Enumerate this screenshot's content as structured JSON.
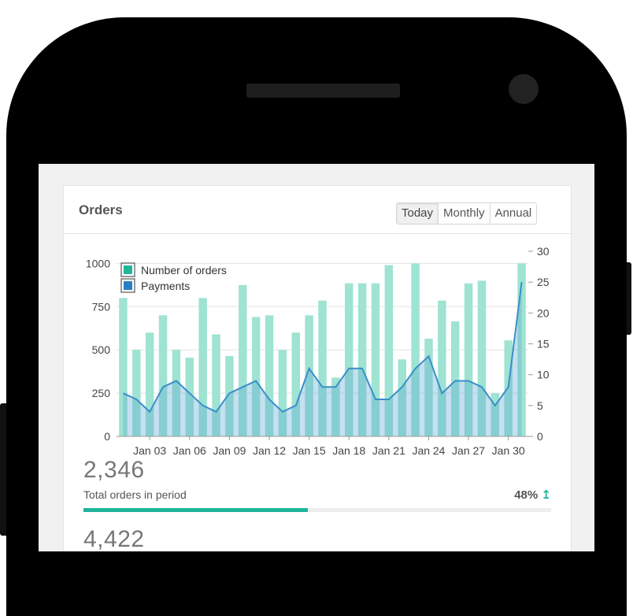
{
  "card": {
    "title": "Orders",
    "range_tabs": [
      {
        "label": "Today",
        "active": true
      },
      {
        "label": "Monthly",
        "active": false
      },
      {
        "label": "Annual",
        "active": false
      }
    ]
  },
  "chart_data": {
    "type": "bar",
    "x_tick_labels": [
      "Jan 03",
      "Jan 06",
      "Jan 09",
      "Jan 12",
      "Jan 15",
      "Jan 18",
      "Jan 21",
      "Jan 24",
      "Jan 27",
      "Jan 30"
    ],
    "y_left_ticks": [
      0,
      250,
      500,
      750,
      1000
    ],
    "y_right_ticks": [
      0,
      5,
      10,
      15,
      20,
      25,
      30
    ],
    "ylim_left": [
      0,
      1070
    ],
    "ylim_right": [
      0,
      30
    ],
    "grid": true,
    "legend_position": "top-left",
    "series": [
      {
        "name": "Number of orders",
        "kind": "bar",
        "axis": "left",
        "color": "#9fe3d2",
        "values": [
          800,
          500,
          600,
          700,
          500,
          455,
          800,
          590,
          465,
          875,
          690,
          700,
          500,
          600,
          700,
          785,
          340,
          885,
          885,
          885,
          990,
          445,
          1000,
          565,
          785,
          665,
          885,
          900,
          250,
          555,
          1000
        ]
      },
      {
        "name": "Payments",
        "kind": "area",
        "axis": "right",
        "color": "#3a8fc8",
        "values": [
          7,
          6,
          4,
          8,
          9,
          7,
          5,
          4,
          7,
          8,
          9,
          6,
          4,
          5,
          11,
          8,
          8,
          11,
          11,
          6,
          6,
          8,
          11,
          13,
          7,
          9,
          9,
          8,
          5,
          8,
          25
        ]
      }
    ]
  },
  "stats": [
    {
      "value": "2,346",
      "label": "Total orders in period",
      "percent": "48%",
      "trend_icon": "arrow-up-icon",
      "progress": 0.48
    },
    {
      "value": "4,422"
    }
  ],
  "colors": {
    "accent": "#1fb59a",
    "orders_bar": "#9fe3d2",
    "payments_line": "#3a8fc8"
  }
}
